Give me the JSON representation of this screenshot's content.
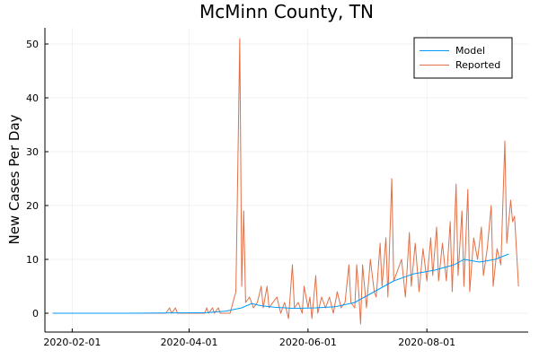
{
  "chart_data": {
    "type": "line",
    "title": "McMinn County, TN",
    "xlabel": "",
    "ylabel": "New Cases Per Day",
    "xlim": [
      "2020-01-18",
      "2020-09-22"
    ],
    "ylim": [
      -3.5,
      53
    ],
    "x_ticks": [
      "2020-02-01",
      "2020-04-01",
      "2020-06-01",
      "2020-08-01"
    ],
    "y_ticks": [
      0,
      10,
      20,
      30,
      40,
      50
    ],
    "grid": true,
    "legend_position": "top-right",
    "series": [
      {
        "name": "Model",
        "color": "#009AFA",
        "points": [
          [
            "2020-01-22",
            0
          ],
          [
            "2020-03-01",
            0
          ],
          [
            "2020-04-10",
            0.1
          ],
          [
            "2020-04-20",
            0.4
          ],
          [
            "2020-04-28",
            1.0
          ],
          [
            "2020-05-03",
            1.8
          ],
          [
            "2020-05-08",
            1.4
          ],
          [
            "2020-05-15",
            1.1
          ],
          [
            "2020-05-25",
            0.9
          ],
          [
            "2020-06-05",
            1.0
          ],
          [
            "2020-06-15",
            1.2
          ],
          [
            "2020-06-25",
            2.0
          ],
          [
            "2020-07-05",
            4.0
          ],
          [
            "2020-07-15",
            6.0
          ],
          [
            "2020-07-25",
            7.3
          ],
          [
            "2020-08-05",
            8.0
          ],
          [
            "2020-08-15",
            9.0
          ],
          [
            "2020-08-20",
            10.0
          ],
          [
            "2020-08-28",
            9.5
          ],
          [
            "2020-09-05",
            10.0
          ],
          [
            "2020-09-12",
            11.0
          ]
        ]
      },
      {
        "name": "Reported",
        "color": "#E26F46",
        "points": [
          [
            "2020-01-22",
            0
          ],
          [
            "2020-03-20",
            0
          ],
          [
            "2020-03-22",
            1
          ],
          [
            "2020-03-23",
            0
          ],
          [
            "2020-03-25",
            1
          ],
          [
            "2020-03-26",
            0
          ],
          [
            "2020-04-09",
            0
          ],
          [
            "2020-04-10",
            1
          ],
          [
            "2020-04-11",
            0
          ],
          [
            "2020-04-13",
            1
          ],
          [
            "2020-04-14",
            0
          ],
          [
            "2020-04-16",
            1
          ],
          [
            "2020-04-17",
            0
          ],
          [
            "2020-04-22",
            0
          ],
          [
            "2020-04-25",
            4
          ],
          [
            "2020-04-27",
            51
          ],
          [
            "2020-04-28",
            5
          ],
          [
            "2020-04-29",
            19
          ],
          [
            "2020-04-30",
            2
          ],
          [
            "2020-05-02",
            3
          ],
          [
            "2020-05-04",
            1
          ],
          [
            "2020-05-06",
            2
          ],
          [
            "2020-05-08",
            5
          ],
          [
            "2020-05-09",
            1
          ],
          [
            "2020-05-11",
            5
          ],
          [
            "2020-05-12",
            1
          ],
          [
            "2020-05-14",
            2
          ],
          [
            "2020-05-16",
            3
          ],
          [
            "2020-05-18",
            0
          ],
          [
            "2020-05-20",
            2
          ],
          [
            "2020-05-22",
            -1
          ],
          [
            "2020-05-24",
            9
          ],
          [
            "2020-05-25",
            1
          ],
          [
            "2020-05-27",
            2
          ],
          [
            "2020-05-29",
            0
          ],
          [
            "2020-05-30",
            5
          ],
          [
            "2020-06-01",
            1
          ],
          [
            "2020-06-02",
            3
          ],
          [
            "2020-06-03",
            -1
          ],
          [
            "2020-06-05",
            7
          ],
          [
            "2020-06-06",
            0
          ],
          [
            "2020-06-08",
            3
          ],
          [
            "2020-06-10",
            1
          ],
          [
            "2020-06-12",
            3
          ],
          [
            "2020-06-14",
            0
          ],
          [
            "2020-06-16",
            4
          ],
          [
            "2020-06-18",
            1
          ],
          [
            "2020-06-20",
            2
          ],
          [
            "2020-06-22",
            9
          ],
          [
            "2020-06-23",
            2
          ],
          [
            "2020-06-25",
            1
          ],
          [
            "2020-06-26",
            9
          ],
          [
            "2020-06-27",
            4
          ],
          [
            "2020-06-28",
            -2
          ],
          [
            "2020-06-29",
            9
          ],
          [
            "2020-07-01",
            1
          ],
          [
            "2020-07-03",
            10
          ],
          [
            "2020-07-05",
            4
          ],
          [
            "2020-07-06",
            3
          ],
          [
            "2020-07-08",
            13
          ],
          [
            "2020-07-09",
            5
          ],
          [
            "2020-07-11",
            14
          ],
          [
            "2020-07-12",
            3
          ],
          [
            "2020-07-14",
            25
          ],
          [
            "2020-07-15",
            6
          ],
          [
            "2020-07-17",
            8
          ],
          [
            "2020-07-19",
            10
          ],
          [
            "2020-07-21",
            3
          ],
          [
            "2020-07-23",
            15
          ],
          [
            "2020-07-24",
            5
          ],
          [
            "2020-07-26",
            13
          ],
          [
            "2020-07-28",
            4
          ],
          [
            "2020-07-30",
            12
          ],
          [
            "2020-08-01",
            6
          ],
          [
            "2020-08-03",
            14
          ],
          [
            "2020-08-04",
            7
          ],
          [
            "2020-08-06",
            16
          ],
          [
            "2020-08-07",
            6
          ],
          [
            "2020-08-09",
            13
          ],
          [
            "2020-08-11",
            6
          ],
          [
            "2020-08-13",
            17
          ],
          [
            "2020-08-14",
            4
          ],
          [
            "2020-08-16",
            24
          ],
          [
            "2020-08-17",
            7
          ],
          [
            "2020-08-19",
            19
          ],
          [
            "2020-08-20",
            5
          ],
          [
            "2020-08-22",
            23
          ],
          [
            "2020-08-23",
            4
          ],
          [
            "2020-08-25",
            14
          ],
          [
            "2020-08-27",
            10
          ],
          [
            "2020-08-29",
            16
          ],
          [
            "2020-08-30",
            7
          ],
          [
            "2020-09-01",
            12
          ],
          [
            "2020-09-03",
            20
          ],
          [
            "2020-09-04",
            5
          ],
          [
            "2020-09-06",
            12
          ],
          [
            "2020-09-08",
            9
          ],
          [
            "2020-09-10",
            32
          ],
          [
            "2020-09-11",
            13
          ],
          [
            "2020-09-13",
            21
          ],
          [
            "2020-09-14",
            17
          ],
          [
            "2020-09-15",
            18
          ],
          [
            "2020-09-17",
            5
          ]
        ]
      }
    ]
  }
}
